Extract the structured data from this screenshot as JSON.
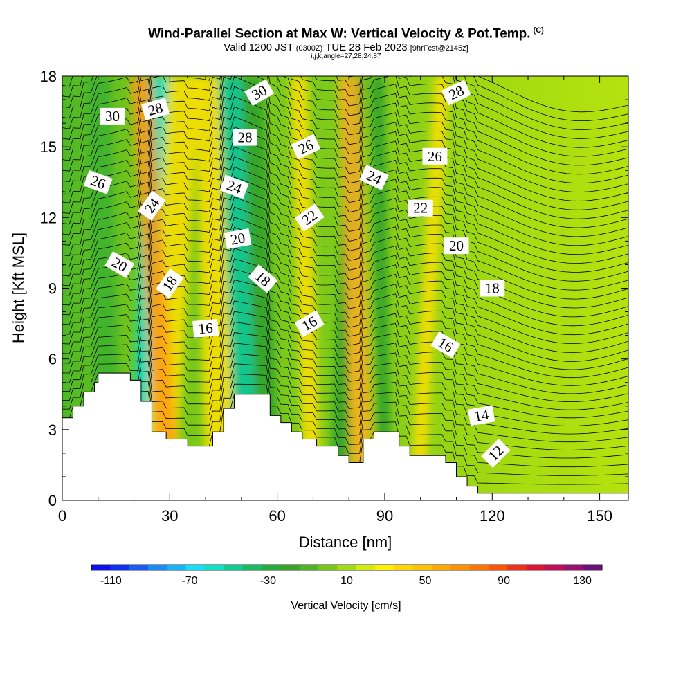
{
  "header": {
    "title": "Wind-Parallel Section at Max W: Vertical Velocity & Pot.Temp.",
    "title_suffix": "(C)",
    "valid_main": "Valid 1200 JST",
    "valid_utc": "(0300Z)",
    "valid_date": "TUE 28 Feb 2023",
    "forecast": "[9hrFcst@2145z]",
    "params": "i,j,k,angle=27,28,24,87"
  },
  "chart_data": {
    "type": "heatmap",
    "xlabel": "Distance [nm]",
    "ylabel": "Height [Kft MSL]",
    "xlim": [
      0,
      158
    ],
    "ylim": [
      0,
      18
    ],
    "xticks": [
      "0",
      "30",
      "60",
      "90",
      "120",
      "150"
    ],
    "xtick_values": [
      0,
      30,
      60,
      90,
      120,
      150
    ],
    "yticks": [
      "0",
      "3",
      "6",
      "9",
      "12",
      "15",
      "18"
    ],
    "ytick_values": [
      0,
      3,
      6,
      9,
      12,
      15,
      18
    ],
    "terrain": [
      [
        0,
        3.5
      ],
      [
        3,
        3.5
      ],
      [
        3,
        4.0
      ],
      [
        6,
        4.0
      ],
      [
        6,
        4.6
      ],
      [
        9,
        4.6
      ],
      [
        9,
        5.0
      ],
      [
        10,
        5.0
      ],
      [
        10,
        5.4
      ],
      [
        19,
        5.4
      ],
      [
        19,
        5.1
      ],
      [
        22,
        5.1
      ],
      [
        22,
        4.2
      ],
      [
        25,
        4.2
      ],
      [
        25,
        2.9
      ],
      [
        29,
        2.9
      ],
      [
        29,
        2.6
      ],
      [
        35,
        2.6
      ],
      [
        35,
        2.3
      ],
      [
        42,
        2.3
      ],
      [
        42,
        2.9
      ],
      [
        45,
        2.9
      ],
      [
        45,
        3.9
      ],
      [
        48,
        3.9
      ],
      [
        48,
        4.5
      ],
      [
        58,
        4.5
      ],
      [
        58,
        3.6
      ],
      [
        61,
        3.6
      ],
      [
        61,
        3.3
      ],
      [
        64,
        3.3
      ],
      [
        64,
        2.9
      ],
      [
        67,
        2.9
      ],
      [
        67,
        2.6
      ],
      [
        71,
        2.6
      ],
      [
        71,
        2.3
      ],
      [
        77,
        2.3
      ],
      [
        77,
        1.9
      ],
      [
        80,
        1.9
      ],
      [
        80,
        1.6
      ],
      [
        84,
        1.6
      ],
      [
        84,
        2.6
      ],
      [
        87,
        2.6
      ],
      [
        87,
        2.9
      ],
      [
        94,
        2.9
      ],
      [
        94,
        2.3
      ],
      [
        97,
        2.3
      ],
      [
        97,
        1.9
      ],
      [
        107,
        1.9
      ],
      [
        107,
        1.6
      ],
      [
        110,
        1.6
      ],
      [
        110,
        1.0
      ],
      [
        113,
        1.0
      ],
      [
        113,
        0.6
      ],
      [
        116,
        0.6
      ],
      [
        116,
        0.3
      ],
      [
        158,
        0.3
      ]
    ],
    "velocity_bands": [
      {
        "x_bottom": 13,
        "x_top": 10,
        "color": "#3cb22e",
        "width": 7
      },
      {
        "x_bottom": 23,
        "x_top": 27,
        "color": "#00ddcc",
        "width": 8
      },
      {
        "x_bottom": 27,
        "x_top": 34,
        "color": "#ffe000",
        "width": 9
      },
      {
        "x_bottom": 30,
        "x_top": 22,
        "color": "#ff9c14",
        "width": 6
      },
      {
        "x_bottom": 44,
        "x_top": 41,
        "color": "#ffe000",
        "width": 8
      },
      {
        "x_bottom": 52,
        "x_top": 47,
        "color": "#00c6a0",
        "width": 7
      },
      {
        "x_bottom": 58,
        "x_top": 53,
        "color": "#2ca02c",
        "width": 6
      },
      {
        "x_bottom": 70,
        "x_top": 66,
        "color": "#ffe000",
        "width": 5
      },
      {
        "x_bottom": 77,
        "x_top": 82,
        "color": "#2ca02c",
        "width": 5
      },
      {
        "x_bottom": 84,
        "x_top": 80,
        "color": "#ffb020",
        "width": 6
      },
      {
        "x_bottom": 90,
        "x_top": 88,
        "color": "#2ca02c",
        "width": 4
      },
      {
        "x_bottom": 99,
        "x_top": 106,
        "color": "#ffe000",
        "width": 4
      }
    ],
    "theta_contours": [
      {
        "value": 12,
        "label": "12",
        "label_x": 121,
        "label_y": 2.0,
        "label_angle": -45
      },
      {
        "value": 14,
        "label": "14",
        "label_x": 117,
        "label_y": 3.6,
        "label_angle": -10
      },
      {
        "value": 16,
        "label": "16",
        "label_x": 40,
        "label_y": 7.3,
        "label_angle": -5
      },
      {
        "value": 16,
        "label": "16",
        "label_x": 69,
        "label_y": 7.5,
        "label_angle": -30
      },
      {
        "value": 16,
        "label": "16",
        "label_x": 107,
        "label_y": 6.6,
        "label_angle": 30
      },
      {
        "value": 18,
        "label": "18",
        "label_x": 30,
        "label_y": 9.2,
        "label_angle": -55
      },
      {
        "value": 18,
        "label": "18",
        "label_x": 56,
        "label_y": 9.4,
        "label_angle": 40
      },
      {
        "value": 18,
        "label": "18",
        "label_x": 120,
        "label_y": 9.0,
        "label_angle": 0
      },
      {
        "value": 20,
        "label": "20",
        "label_x": 16,
        "label_y": 10.0,
        "label_angle": 30
      },
      {
        "value": 20,
        "label": "20",
        "label_x": 49,
        "label_y": 11.1,
        "label_angle": -10
      },
      {
        "value": 20,
        "label": "20",
        "label_x": 110,
        "label_y": 10.8,
        "label_angle": 0
      },
      {
        "value": 22,
        "label": "22",
        "label_x": 69,
        "label_y": 12.0,
        "label_angle": -35
      },
      {
        "value": 22,
        "label": "22",
        "label_x": 100,
        "label_y": 12.4,
        "label_angle": 0
      },
      {
        "value": 24,
        "label": "24",
        "label_x": 25,
        "label_y": 12.5,
        "label_angle": -55
      },
      {
        "value": 24,
        "label": "24",
        "label_x": 48,
        "label_y": 13.3,
        "label_angle": 20
      },
      {
        "value": 24,
        "label": "24",
        "label_x": 87,
        "label_y": 13.7,
        "label_angle": 25
      },
      {
        "value": 26,
        "label": "26",
        "label_x": 10,
        "label_y": 13.5,
        "label_angle": 20
      },
      {
        "value": 26,
        "label": "26",
        "label_x": 68,
        "label_y": 15.0,
        "label_angle": -25
      },
      {
        "value": 26,
        "label": "26",
        "label_x": 104,
        "label_y": 14.6,
        "label_angle": 0
      },
      {
        "value": 28,
        "label": "28",
        "label_x": 26,
        "label_y": 16.6,
        "label_angle": -15
      },
      {
        "value": 28,
        "label": "28",
        "label_x": 51,
        "label_y": 15.4,
        "label_angle": 0
      },
      {
        "value": 28,
        "label": "28",
        "label_x": 110,
        "label_y": 17.3,
        "label_angle": -25
      },
      {
        "value": 30,
        "label": "30",
        "label_x": 14,
        "label_y": 16.3,
        "label_angle": 0
      },
      {
        "value": 30,
        "label": "30",
        "label_x": 55,
        "label_y": 17.3,
        "label_angle": -30
      }
    ],
    "colorbar": {
      "label": "Vertical Velocity [cm/s]",
      "min": -120,
      "max": 140,
      "step": 10,
      "colors": [
        "#1010ee",
        "#1030f0",
        "#1a5cf5",
        "#1a8cf8",
        "#18b4fa",
        "#14e0f8",
        "#10e0c4",
        "#10cf90",
        "#18bc62",
        "#26ac3a",
        "#38a428",
        "#52b422",
        "#78c818",
        "#a0dc10",
        "#d2ec0c",
        "#fff000",
        "#ffd800",
        "#ffc000",
        "#ffa800",
        "#ff9000",
        "#ff7400",
        "#ff5400",
        "#f03018",
        "#dd1438",
        "#c00e58",
        "#9a1070",
        "#6c107a"
      ],
      "tick_values": [
        -110,
        -70,
        -30,
        10,
        50,
        90,
        130
      ],
      "tick_labels": [
        "-110",
        "-70",
        "-30",
        "10",
        "50",
        "90",
        "130"
      ]
    }
  }
}
